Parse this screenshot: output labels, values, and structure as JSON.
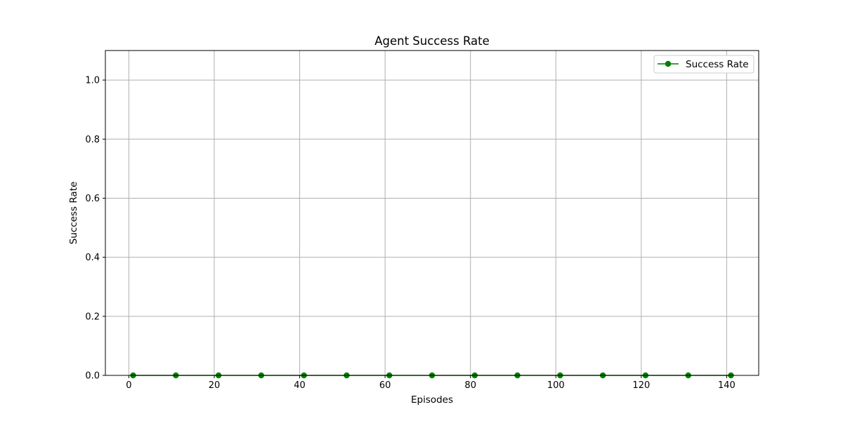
{
  "chart_data": {
    "type": "line",
    "title": "Agent Success Rate",
    "xlabel": "Episodes",
    "ylabel": "Success Rate",
    "xlim": [
      -5.5,
      147.5
    ],
    "ylim": [
      0,
      1.1
    ],
    "x_ticks": [
      0,
      20,
      40,
      60,
      80,
      100,
      120,
      140
    ],
    "y_ticks": [
      0.0,
      0.2,
      0.4,
      0.6,
      0.8,
      1.0
    ],
    "x_tick_labels": [
      "0",
      "20",
      "40",
      "60",
      "80",
      "100",
      "120",
      "140"
    ],
    "y_tick_labels": [
      "0.0",
      "0.2",
      "0.4",
      "0.6",
      "0.8",
      "1.0"
    ],
    "grid": true,
    "legend_position": "top-right",
    "series": [
      {
        "name": "Success Rate",
        "color": "#008000",
        "marker": "circle",
        "x": [
          1,
          11,
          21,
          31,
          41,
          51,
          61,
          71,
          81,
          91,
          101,
          111,
          121,
          131,
          141
        ],
        "y": [
          0,
          0,
          0,
          0,
          0,
          0,
          0,
          0,
          0,
          0,
          0,
          0,
          0,
          0,
          0
        ]
      }
    ]
  }
}
